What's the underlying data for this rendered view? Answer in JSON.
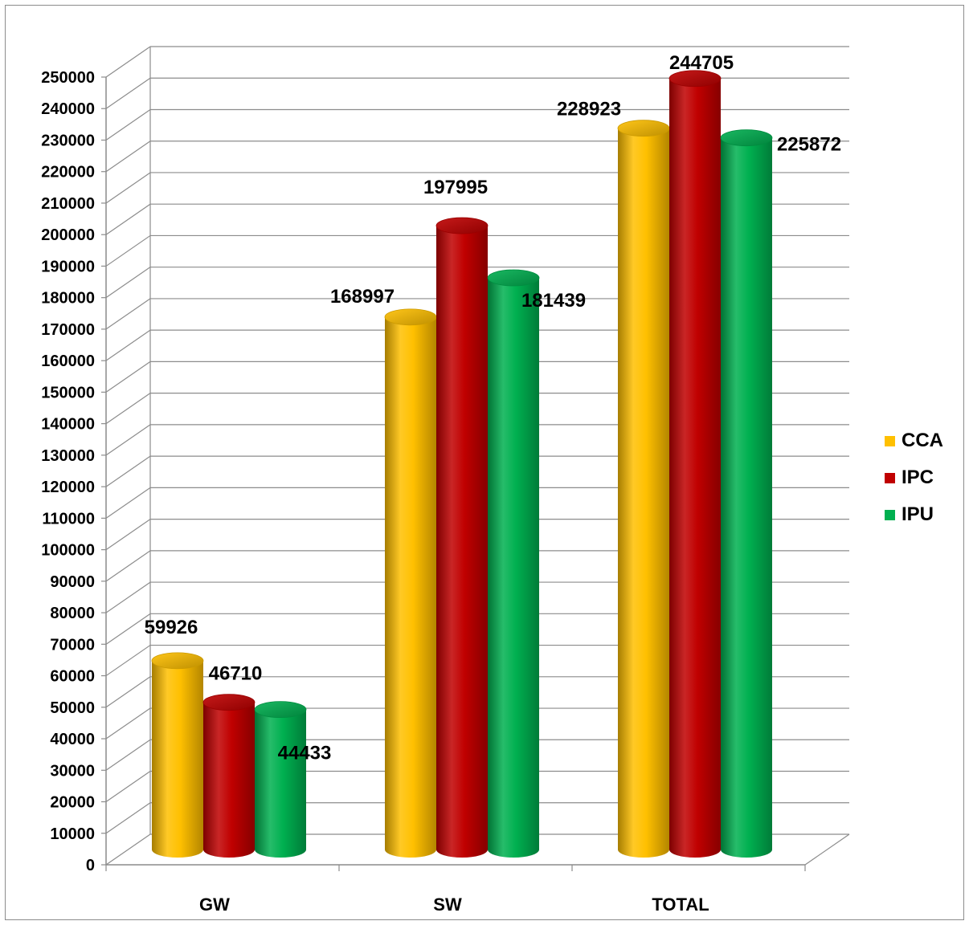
{
  "chart_data": {
    "type": "bar",
    "title": "",
    "xlabel": "",
    "ylabel": "",
    "categories": [
      "GW",
      "SW",
      "TOTAL"
    ],
    "series": [
      {
        "name": "CCA",
        "color": "#FFC000",
        "values": [
          59926,
          168997,
          228923
        ]
      },
      {
        "name": "IPC",
        "color": "#C00000",
        "values": [
          46710,
          197995,
          244705
        ]
      },
      {
        "name": "IPU",
        "color": "#00B050",
        "values": [
          44433,
          181439,
          225872
        ]
      }
    ],
    "ylim": [
      0,
      250000
    ],
    "ytick_step": 10000,
    "grid": true,
    "three_d": true,
    "legend_position": "right"
  }
}
